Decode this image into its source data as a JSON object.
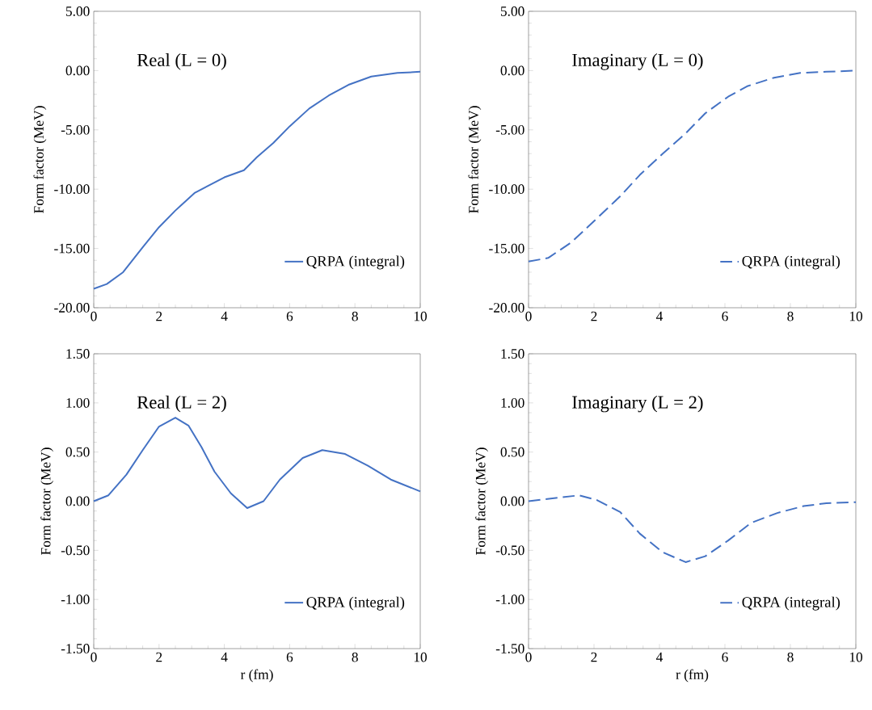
{
  "chart_data": [
    {
      "type": "line",
      "ylabel": "Form factor (MeV)",
      "annotations": [
        "Real (L = 0)"
      ],
      "legend": "bottom right",
      "line_style": "solid",
      "x": [
        0,
        0.4,
        0.9,
        1.5,
        2,
        2.5,
        3.1,
        4,
        4.6,
        5,
        5.5,
        6,
        6.6,
        7.2,
        7.8,
        8.5,
        9.3,
        10
      ],
      "series": [
        {
          "name": "QRPA (integral)",
          "color": "#4472c4",
          "values": [
            -18.4,
            -18.0,
            -17.0,
            -14.9,
            -13.2,
            -11.8,
            -10.3,
            -9.0,
            -8.4,
            -7.3,
            -6.1,
            -4.7,
            -3.2,
            -2.1,
            -1.2,
            -0.5,
            -0.2,
            -0.1
          ]
        }
      ],
      "xlim": [
        0,
        10
      ],
      "xticks": [
        0,
        2,
        4,
        6,
        8,
        10
      ],
      "ylim": [
        -20,
        5
      ],
      "yticks": [
        {
          "value": -20,
          "label": "-20.00"
        },
        {
          "value": -15,
          "label": "-15.00"
        },
        {
          "value": -10,
          "label": "-10.00"
        },
        {
          "value": -5,
          "label": "-5.00"
        },
        {
          "value": 0,
          "label": "0.00"
        },
        {
          "value": 5,
          "label": "5.00"
        }
      ]
    },
    {
      "type": "line",
      "ylabel": "Form factor (MeV)",
      "annotations": [
        "Imaginary (L = 0)"
      ],
      "legend": "bottom right",
      "line_style": "dashed",
      "x": [
        0,
        0.6,
        1.3,
        2,
        2.8,
        3.4,
        4.1,
        4.8,
        5.4,
        6.1,
        6.7,
        7.5,
        8.3,
        9.1,
        10
      ],
      "series": [
        {
          "name": "QRPA (integral)",
          "color": "#4472c4",
          "values": [
            -16.1,
            -15.8,
            -14.5,
            -12.7,
            -10.6,
            -8.8,
            -7.0,
            -5.3,
            -3.6,
            -2.2,
            -1.3,
            -0.6,
            -0.2,
            -0.1,
            0.0
          ]
        }
      ],
      "xlim": [
        0,
        10
      ],
      "xticks": [
        0,
        2,
        4,
        6,
        8,
        10
      ],
      "ylim": [
        -20,
        5
      ],
      "yticks": [
        {
          "value": -20,
          "label": "-20.00"
        },
        {
          "value": -15,
          "label": "-15.00"
        },
        {
          "value": -10,
          "label": "-10.00"
        },
        {
          "value": -5,
          "label": "-5.00"
        },
        {
          "value": 0,
          "label": "0.00"
        },
        {
          "value": 5,
          "label": "5.00"
        }
      ]
    },
    {
      "type": "line",
      "xlabel": "r (fm)",
      "ylabel": "Form factor (MeV)",
      "annotations": [
        "Real (L = 2)"
      ],
      "legend": "bottom right",
      "line_style": "solid",
      "x": [
        0,
        0.45,
        1.0,
        1.5,
        2.0,
        2.5,
        2.9,
        3.3,
        3.7,
        4.2,
        4.7,
        5.2,
        5.7,
        6.4,
        7.0,
        7.7,
        8.4,
        9.1,
        10
      ],
      "series": [
        {
          "name": "QRPA (integral)",
          "color": "#4472c4",
          "values": [
            0.0,
            0.06,
            0.27,
            0.52,
            0.76,
            0.85,
            0.77,
            0.55,
            0.3,
            0.08,
            -0.07,
            0.0,
            0.22,
            0.44,
            0.52,
            0.48,
            0.36,
            0.22,
            0.1
          ]
        }
      ],
      "xlim": [
        0,
        10
      ],
      "xticks": [
        0,
        2,
        4,
        6,
        8,
        10
      ],
      "ylim": [
        -1.5,
        1.5
      ],
      "yticks": [
        {
          "value": -1.5,
          "label": "-1.50"
        },
        {
          "value": -1,
          "label": "-1.00"
        },
        {
          "value": -0.5,
          "label": "-0.50"
        },
        {
          "value": 0,
          "label": "0.00"
        },
        {
          "value": 0.5,
          "label": "0.50"
        },
        {
          "value": 1,
          "label": "1.00"
        },
        {
          "value": 1.5,
          "label": "1.50"
        }
      ]
    },
    {
      "type": "line",
      "xlabel": "r (fm)",
      "ylabel": "Form factor (MeV)",
      "annotations": [
        "Imaginary (L = 2)"
      ],
      "legend": "bottom right",
      "line_style": "dashed",
      "x": [
        0,
        1.55,
        2.1,
        2.8,
        3.4,
        4.1,
        4.8,
        5.4,
        6.1,
        6.8,
        7.6,
        8.4,
        9.1,
        10
      ],
      "series": [
        {
          "name": "QRPA (integral)",
          "color": "#4472c4",
          "values": [
            0.0,
            0.06,
            0.01,
            -0.11,
            -0.33,
            -0.52,
            -0.62,
            -0.56,
            -0.4,
            -0.22,
            -0.12,
            -0.05,
            -0.02,
            -0.01
          ]
        }
      ],
      "xlim": [
        0,
        10
      ],
      "xticks": [
        0,
        2,
        4,
        6,
        8,
        10
      ],
      "ylim": [
        -1.5,
        1.5
      ],
      "yticks": [
        {
          "value": -1.5,
          "label": "-1.50"
        },
        {
          "value": -1,
          "label": "-1.00"
        },
        {
          "value": -0.5,
          "label": "-0.50"
        },
        {
          "value": 0,
          "label": "0.00"
        },
        {
          "value": 0.5,
          "label": "0.50"
        },
        {
          "value": 1,
          "label": "1.00"
        },
        {
          "value": 1.5,
          "label": "1.50"
        }
      ]
    }
  ]
}
